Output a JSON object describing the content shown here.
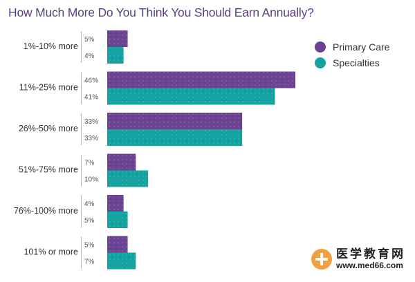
{
  "title": "How Much More Do You Think You Should Earn Annually?",
  "chart_data": {
    "type": "bar",
    "orientation": "horizontal",
    "title": "How Much More Do You Think You Should Earn Annually?",
    "categories": [
      "1%-10% more",
      "11%-25% more",
      "26%-50% more",
      "51%-75% more",
      "76%-100% more",
      "101% or more"
    ],
    "series": [
      {
        "name": "Primary Care",
        "values": [
          5,
          46,
          33,
          7,
          4,
          5
        ],
        "labels": [
          "5%",
          "46%",
          "33%",
          "7%",
          "4%",
          "5%"
        ],
        "color": "#6b4391"
      },
      {
        "name": "Specialties",
        "values": [
          4,
          41,
          33,
          10,
          5,
          7
        ],
        "labels": [
          "4%",
          "41%",
          "33%",
          "10%",
          "5%",
          "7%"
        ],
        "color": "#15a3a1"
      }
    ],
    "legend_position": "top-right",
    "xlim": [
      0,
      46
    ]
  },
  "legend": {
    "items": [
      {
        "label": "Primary Care",
        "color": "#6b4391"
      },
      {
        "label": "Specialties",
        "color": "#15a3a1"
      }
    ]
  },
  "watermark": {
    "cn": "医学教育网",
    "url": "www.med66.com"
  }
}
